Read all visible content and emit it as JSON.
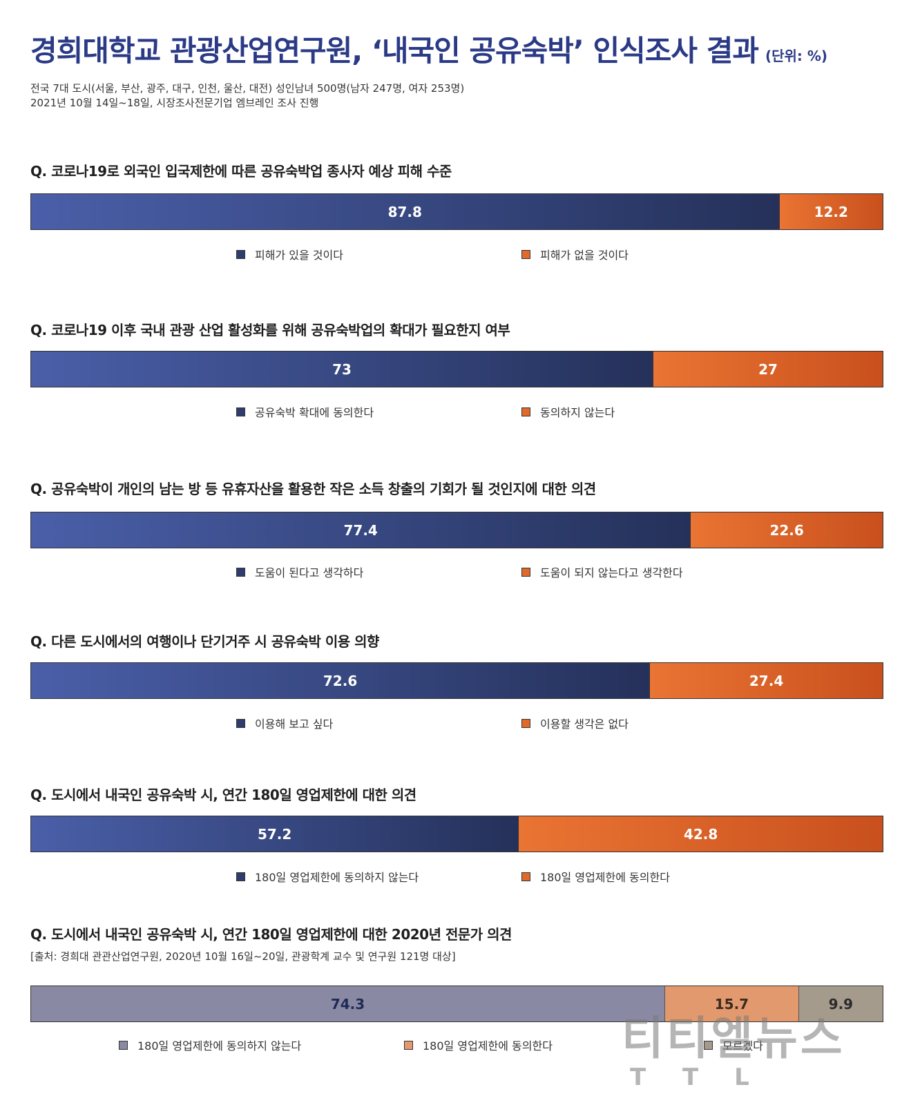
{
  "header": {
    "title": "경희대학교 관광산업연구원, ‘내국인 공유숙박’ 인식조사 결과",
    "unit": "(단위: %)",
    "meta_line1": "전국 7대 도시(서울, 부산, 광주, 대구, 인천, 울산, 대전) 성인남녀 500명(남자 247명, 여자 253명)",
    "meta_line2": "2021년 10월 14일~18일, 시장조사전문기업 엠브레인 조사 진행"
  },
  "watermark": {
    "main": "티티엘뉴스",
    "sub": "TTL"
  },
  "colors": {
    "title": "#2b3a86",
    "blue_start": "#4a5fa9",
    "blue_end": "#25315a",
    "orange_start": "#ea7433",
    "orange_end": "#c9501d",
    "gray": "#8a89a3",
    "peach": "#e3996e",
    "taupe": "#a59b8c"
  },
  "chart_data": [
    {
      "type": "bar",
      "stacked": true,
      "title": "Q. 코로나19로 외국인 입국제한에 따른 공유숙박업 종사자 예상 피해 수준",
      "series": [
        {
          "name": "피해가 있을 것이다",
          "values": [
            87.8
          ]
        },
        {
          "name": "피해가 없을 것이다",
          "values": [
            12.2
          ]
        }
      ]
    },
    {
      "type": "bar",
      "stacked": true,
      "title": "Q. 코로나19 이후 국내 관광 산업 활성화를 위해 공유숙박업의 확대가 필요한지 여부",
      "series": [
        {
          "name": "공유숙박 확대에 동의한다",
          "values": [
            73
          ]
        },
        {
          "name": "동의하지 않는다",
          "values": [
            27
          ]
        }
      ]
    },
    {
      "type": "bar",
      "stacked": true,
      "title": "Q. 공유숙박이 개인의 남는 방 등 유휴자산을 활용한 작은 소득 창출의 기회가 될 것인지에 대한 의견",
      "series": [
        {
          "name": "도움이 된다고 생각하다",
          "values": [
            77.4
          ]
        },
        {
          "name": "도움이 되지 않는다고 생각한다",
          "values": [
            22.6
          ]
        }
      ]
    },
    {
      "type": "bar",
      "stacked": true,
      "title": "Q. 다른 도시에서의 여행이나 단기거주 시 공유숙박 이용 의향",
      "series": [
        {
          "name": "이용해 보고 싶다",
          "values": [
            72.6
          ]
        },
        {
          "name": "이용할 생각은 없다",
          "values": [
            27.4
          ]
        }
      ]
    },
    {
      "type": "bar",
      "stacked": true,
      "title": "Q. 도시에서 내국인 공유숙박 시, 연간 180일 영업제한에 대한 의견",
      "series": [
        {
          "name": "180일 영업제한에 동의하지 않는다",
          "values": [
            57.2
          ]
        },
        {
          "name": "180일 영업제한에 동의한다",
          "values": [
            42.8
          ]
        }
      ]
    },
    {
      "type": "bar",
      "stacked": true,
      "title": "Q. 도시에서 내국인 공유숙박 시, 연간 180일 영업제한에 대한 2020년 전문가 의견",
      "source": "[출처: 경희대 관관산업연구원, 2020년 10월 16일~20일, 관광학계 교수 및 연구원 121명 대상]",
      "series": [
        {
          "name": "180일 영업제한에 동의하지 않는다",
          "values": [
            74.3
          ]
        },
        {
          "name": "180일 영업제한에 동의한다",
          "values": [
            15.7
          ]
        },
        {
          "name": "모르겠다",
          "values": [
            9.9
          ]
        }
      ]
    }
  ]
}
